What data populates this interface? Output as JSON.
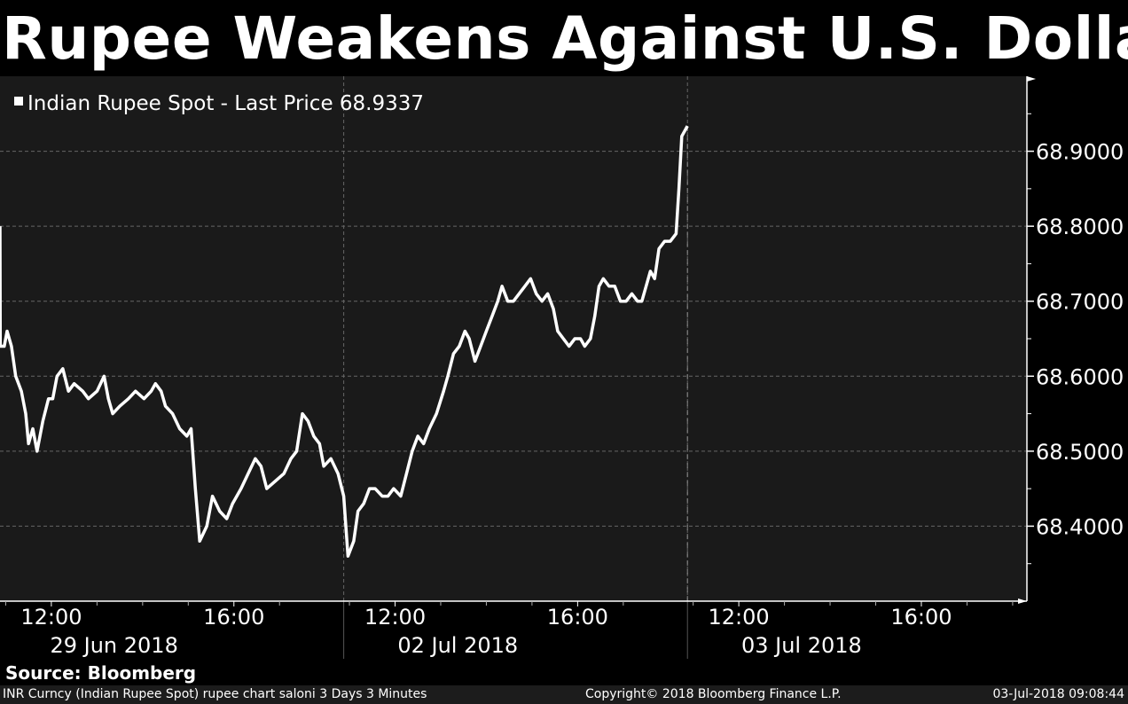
{
  "title": "Rupee Weakens Against U.S. Dollar",
  "source": "Source: Bloomberg",
  "footer": {
    "left": "INR Curncy (Indian Rupee Spot) rupee chart saloni 3 Days 3 Minutes",
    "center": "Copyright© 2018 Bloomberg Finance L.P.",
    "right": "03-Jul-2018 09:08:44"
  },
  "colors": {
    "background": "#000000",
    "plot": "#1a1a1a",
    "line": "#ffffff",
    "grid": "#666666"
  },
  "chart_data": {
    "type": "line",
    "legend": "Indian Rupee Spot - Last Price 68.9337",
    "legend_placement": "top-left",
    "last_price": 68.9337,
    "y_ticks": [
      "68.9000",
      "68.8000",
      "68.7000",
      "68.6000",
      "68.5000",
      "68.4000"
    ],
    "y_tick_values": [
      68.9,
      68.8,
      68.7,
      68.6,
      68.5,
      68.4
    ],
    "ylim": [
      68.3,
      69.0
    ],
    "x_domain_hours": [
      0,
      72
    ],
    "x_time_labels": [
      {
        "t": 3.6,
        "label": "12:00"
      },
      {
        "t": 16.4,
        "label": "16:00"
      },
      {
        "t": 27.7,
        "label": "12:00"
      },
      {
        "t": 40.5,
        "label": "16:00"
      },
      {
        "t": 51.8,
        "label": "12:00"
      },
      {
        "t": 64.6,
        "label": "16:00"
      }
    ],
    "x_date_labels": [
      {
        "t": 8.0,
        "label": "29 Jun 2018"
      },
      {
        "t": 32.1,
        "label": "02 Jul 2018"
      },
      {
        "t": 56.2,
        "label": "03 Jul 2018"
      }
    ],
    "x_day_dividers": [
      24.1,
      48.2
    ],
    "series": [
      {
        "name": "Indian Rupee Spot",
        "points": [
          [
            0,
            68.8
          ],
          [
            0.02,
            68.64
          ],
          [
            0.3,
            68.64
          ],
          [
            0.5,
            68.66
          ],
          [
            0.8,
            68.64
          ],
          [
            1.1,
            68.6
          ],
          [
            1.5,
            68.58
          ],
          [
            1.8,
            68.55
          ],
          [
            2.0,
            68.51
          ],
          [
            2.3,
            68.53
          ],
          [
            2.6,
            68.5
          ],
          [
            3.0,
            68.54
          ],
          [
            3.4,
            68.57
          ],
          [
            3.7,
            68.57
          ],
          [
            4.0,
            68.6
          ],
          [
            4.4,
            68.61
          ],
          [
            4.8,
            68.58
          ],
          [
            5.2,
            68.59
          ],
          [
            5.8,
            68.58
          ],
          [
            6.2,
            68.57
          ],
          [
            6.8,
            68.58
          ],
          [
            7.3,
            68.6
          ],
          [
            7.6,
            68.57
          ],
          [
            7.9,
            68.55
          ],
          [
            8.4,
            68.56
          ],
          [
            9.0,
            68.57
          ],
          [
            9.5,
            68.58
          ],
          [
            10.1,
            68.57
          ],
          [
            10.6,
            68.58
          ],
          [
            10.9,
            68.59
          ],
          [
            11.3,
            68.58
          ],
          [
            11.6,
            68.56
          ],
          [
            12.1,
            68.55
          ],
          [
            12.6,
            68.53
          ],
          [
            13.1,
            68.52
          ],
          [
            13.4,
            68.53
          ],
          [
            13.7,
            68.45
          ],
          [
            14.0,
            68.38
          ],
          [
            14.5,
            68.4
          ],
          [
            14.9,
            68.44
          ],
          [
            15.4,
            68.42
          ],
          [
            15.9,
            68.41
          ],
          [
            16.3,
            68.43
          ],
          [
            16.9,
            68.45
          ],
          [
            17.4,
            68.47
          ],
          [
            17.9,
            68.49
          ],
          [
            18.3,
            68.48
          ],
          [
            18.7,
            68.45
          ],
          [
            19.3,
            68.46
          ],
          [
            19.9,
            68.47
          ],
          [
            20.4,
            68.49
          ],
          [
            20.8,
            68.5
          ],
          [
            21.2,
            68.55
          ],
          [
            21.6,
            68.54
          ],
          [
            22.0,
            68.52
          ],
          [
            22.4,
            68.51
          ],
          [
            22.7,
            68.48
          ],
          [
            23.2,
            68.49
          ],
          [
            23.7,
            68.47
          ],
          [
            24.1,
            68.44
          ],
          [
            24.4,
            68.36
          ],
          [
            24.8,
            68.38
          ],
          [
            25.1,
            68.42
          ],
          [
            25.5,
            68.43
          ],
          [
            25.9,
            68.45
          ],
          [
            26.3,
            68.45
          ],
          [
            26.8,
            68.44
          ],
          [
            27.2,
            68.44
          ],
          [
            27.6,
            68.45
          ],
          [
            28.1,
            68.44
          ],
          [
            28.5,
            68.47
          ],
          [
            28.9,
            68.5
          ],
          [
            29.3,
            68.52
          ],
          [
            29.7,
            68.51
          ],
          [
            30.1,
            68.53
          ],
          [
            30.6,
            68.55
          ],
          [
            31.1,
            68.58
          ],
          [
            31.4,
            68.6
          ],
          [
            31.8,
            68.63
          ],
          [
            32.2,
            68.64
          ],
          [
            32.6,
            68.66
          ],
          [
            32.9,
            68.65
          ],
          [
            33.3,
            68.62
          ],
          [
            33.7,
            68.64
          ],
          [
            34.1,
            68.66
          ],
          [
            34.5,
            68.68
          ],
          [
            34.9,
            68.7
          ],
          [
            35.2,
            68.72
          ],
          [
            35.6,
            68.7
          ],
          [
            36.0,
            68.7
          ],
          [
            36.4,
            68.71
          ],
          [
            36.8,
            68.72
          ],
          [
            37.2,
            68.73
          ],
          [
            37.6,
            68.71
          ],
          [
            38.0,
            68.7
          ],
          [
            38.4,
            68.71
          ],
          [
            38.8,
            68.69
          ],
          [
            39.1,
            68.66
          ],
          [
            39.5,
            68.65
          ],
          [
            39.9,
            68.64
          ],
          [
            40.3,
            68.65
          ],
          [
            40.7,
            68.65
          ],
          [
            41.0,
            68.64
          ],
          [
            41.4,
            68.65
          ],
          [
            41.7,
            68.68
          ],
          [
            42.0,
            68.72
          ],
          [
            42.3,
            68.73
          ],
          [
            42.7,
            68.72
          ],
          [
            43.1,
            68.72
          ],
          [
            43.5,
            68.7
          ],
          [
            43.9,
            68.7
          ],
          [
            44.3,
            68.71
          ],
          [
            44.7,
            68.7
          ],
          [
            45.0,
            68.7
          ],
          [
            45.3,
            68.72
          ],
          [
            45.6,
            68.74
          ],
          [
            45.9,
            68.73
          ],
          [
            46.2,
            68.77
          ],
          [
            46.6,
            68.78
          ],
          [
            47.0,
            68.78
          ],
          [
            47.4,
            68.79
          ],
          [
            47.6,
            68.85
          ],
          [
            47.8,
            68.92
          ],
          [
            48.2,
            68.9337
          ]
        ]
      }
    ]
  }
}
